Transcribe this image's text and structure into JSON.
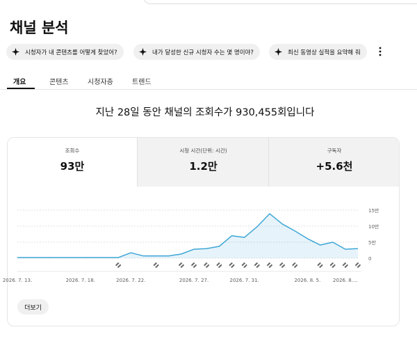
{
  "header": {
    "title": "채널 분석"
  },
  "chips": [
    "시청자가 내 콘텐츠를 어떻게 찾았어?",
    "내가 달성한 신규 시청자 수는 몇 명이야?",
    "최신 동영상 실적을 요약해 줘"
  ],
  "tabs": [
    "개요",
    "콘텐츠",
    "시청자층",
    "트렌드"
  ],
  "headline": "지난 28일 동안 채널의 조회수가 930,455회입니다",
  "metrics": [
    {
      "label": "조회수",
      "value": "93만"
    },
    {
      "label": "시청 시간(단위: 시간)",
      "value": "1.2만"
    },
    {
      "label": "구독자",
      "value": "+5.6천"
    }
  ],
  "chart_data": {
    "type": "line",
    "categories": [
      "2026. 7. 13.",
      null,
      null,
      null,
      null,
      "2026. 7. 18.",
      null,
      null,
      null,
      "2026. 7. 22.",
      null,
      null,
      null,
      null,
      "2026. 7. 27.",
      null,
      null,
      null,
      "2026. 7. 31.",
      null,
      null,
      null,
      null,
      "2026. 8. 5.",
      null,
      null,
      "2026. 8....",
      null
    ],
    "values": [
      0.2,
      0.2,
      0.2,
      0.2,
      0.2,
      0.2,
      0.2,
      0.2,
      0.2,
      1.7,
      0.7,
      0.7,
      0.7,
      1.3,
      2.8,
      3.0,
      3.7,
      7.0,
      6.5,
      9.8,
      13.9,
      10.7,
      8.5,
      6.1,
      4.1,
      5.0,
      2.8,
      3.0
    ],
    "color": "#3ea6d6",
    "ylim": [
      0,
      15
    ],
    "yticks": [
      0,
      {
        "value": 5,
        "label": "5만"
      },
      {
        "value": 10,
        "label": "10만"
      },
      {
        "value": 15,
        "label": "15만"
      }
    ],
    "grid": true
  },
  "more_button": "더보기"
}
